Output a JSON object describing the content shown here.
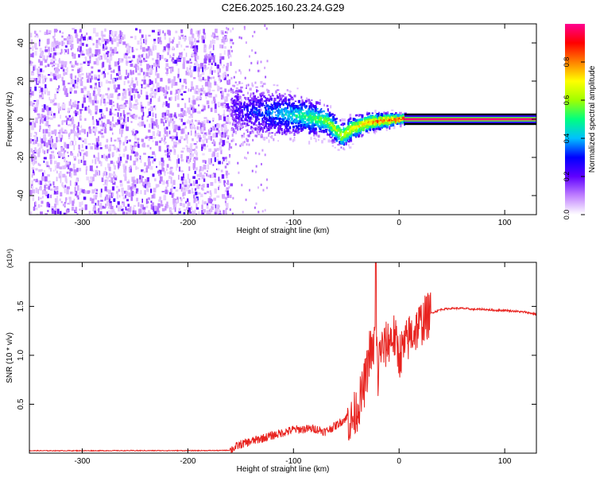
{
  "figure_title": "C2E6.2025.160.23.24.G29",
  "chart_data": [
    {
      "type": "heatmap",
      "title": "C2E6.2025.160.23.24.G29",
      "xlabel": "Height of straight line (km)",
      "ylabel": "Frequency (Hz)",
      "xlim": [
        -350,
        130
      ],
      "ylim": [
        -50,
        50
      ],
      "x_ticks": [
        -300,
        -200,
        -100,
        0,
        100
      ],
      "y_ticks": [
        -40,
        -20,
        0,
        20,
        40
      ],
      "colorbar": {
        "label": "Normalized spectral amplitude",
        "range": [
          0,
          1
        ],
        "ticks": [
          "0.0",
          "0.2",
          "0.4",
          "0.6",
          "0.8"
        ],
        "colors": [
          "#ffffff",
          "#c080ff",
          "#6000ff",
          "#0000ff",
          "#00c0ff",
          "#00ff80",
          "#a0ff00",
          "#ffff00",
          "#ff8000",
          "#ff0000",
          "#ff0090"
        ]
      },
      "regions": [
        {
          "name": "noise",
          "x_range": [
            -350,
            -160
          ],
          "freq_range": [
            -50,
            48
          ],
          "amplitude": 0.08
        },
        {
          "name": "transition",
          "x_range": [
            -160,
            5
          ],
          "center_freq_trend": [
            [
              -160,
              6
            ],
            [
              -120,
              4
            ],
            [
              -90,
              2
            ],
            [
              -70,
              0
            ],
            [
              -55,
              -8
            ],
            [
              -45,
              -4
            ],
            [
              -30,
              -1
            ],
            [
              -15,
              0
            ],
            [
              5,
              1
            ]
          ],
          "amplitude": 0.5
        },
        {
          "name": "tone",
          "x_range": [
            5,
            130
          ],
          "freq": 0,
          "amplitude": 0.98
        }
      ]
    },
    {
      "type": "line",
      "xlabel": "Height of straight line (km)",
      "ylabel": "SNR (10 * v/v)",
      "y_multiplier": "(x10⁴)",
      "xlim": [
        -350,
        130
      ],
      "ylim": [
        0,
        1.95
      ],
      "x_ticks": [
        -300,
        -200,
        -100,
        0,
        100
      ],
      "y_ticks": [
        0.5,
        1.0,
        1.5
      ],
      "y_tick_labels": [
        "0.5",
        "1.0",
        "1.5"
      ],
      "series": [
        {
          "color": "#e8231f",
          "x": [
            -350,
            -300,
            -250,
            -200,
            -170,
            -160,
            -150,
            -140,
            -120,
            -100,
            -80,
            -70,
            -60,
            -50,
            -45,
            -40,
            -35,
            -30,
            -28,
            -25,
            -22,
            -20,
            -18,
            -15,
            -10,
            -5,
            0,
            5,
            10,
            15,
            20,
            25,
            30,
            40,
            50,
            60,
            70,
            80,
            90,
            100,
            110,
            120,
            130
          ],
          "y": [
            0.025,
            0.025,
            0.026,
            0.026,
            0.027,
            0.03,
            0.09,
            0.12,
            0.18,
            0.24,
            0.25,
            0.22,
            0.28,
            0.36,
            0.32,
            0.45,
            0.6,
            0.85,
            1.05,
            1.0,
            1.3,
            0.75,
            1.1,
            1.05,
            1.15,
            1.2,
            1.0,
            1.08,
            1.2,
            1.25,
            1.32,
            1.38,
            1.43,
            1.47,
            1.48,
            1.48,
            1.47,
            1.47,
            1.46,
            1.46,
            1.45,
            1.44,
            1.42
          ]
        }
      ],
      "spike": {
        "x": -22,
        "y": 1.95
      }
    }
  ]
}
